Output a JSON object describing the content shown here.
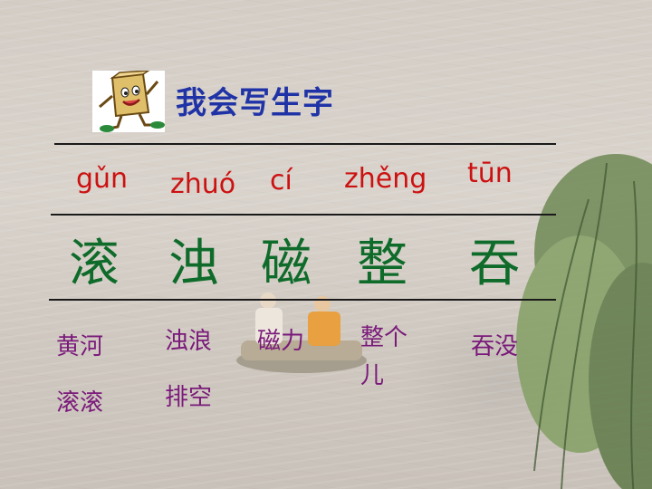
{
  "title": "我会写生字",
  "mascot_icon": "paper-bag-mascot-icon",
  "characters": [
    {
      "pinyin": "gǔn",
      "hanzi": "滚",
      "words": [
        "黄河",
        "滚滚"
      ]
    },
    {
      "pinyin": "zhuó",
      "hanzi": "浊",
      "words": [
        "浊浪",
        "排空"
      ]
    },
    {
      "pinyin": "cí",
      "hanzi": "磁",
      "words": [
        "磁力"
      ]
    },
    {
      "pinyin": "zhěng",
      "hanzi": "整",
      "words": [
        "整个",
        "儿"
      ]
    },
    {
      "pinyin": "tūn",
      "hanzi": "吞",
      "words": [
        "吞没"
      ]
    }
  ],
  "colors": {
    "title": "#1f33a6",
    "pinyin": "#cc1111",
    "hanzi": "#0f6b2a",
    "words": "#7a1a7a"
  }
}
